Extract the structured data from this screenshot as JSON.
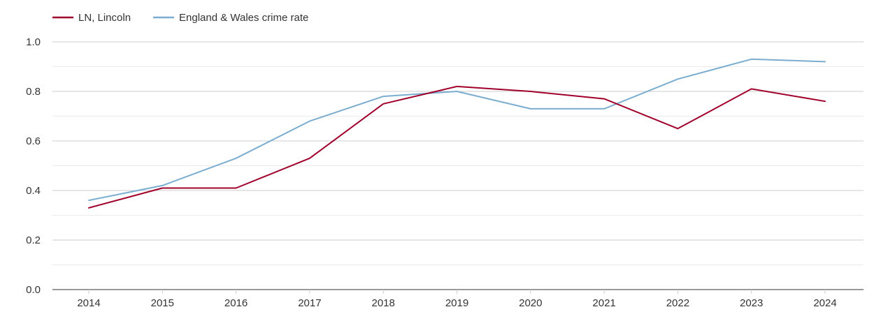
{
  "chart_data": {
    "type": "line",
    "title": "",
    "xlabel": "",
    "ylabel": "",
    "categories": [
      "2014",
      "2015",
      "2016",
      "2017",
      "2018",
      "2019",
      "2020",
      "2021",
      "2022",
      "2023",
      "2024"
    ],
    "ylim": [
      0,
      1.0
    ],
    "y_ticks": [
      "0.0",
      "0.2",
      "0.4",
      "0.6",
      "0.8",
      "1.0"
    ],
    "y_tick_values": [
      0,
      0.2,
      0.4,
      0.6,
      0.8,
      1.0
    ],
    "grid": true,
    "legend_position": "top-left",
    "series": [
      {
        "name": "LN, Lincoln",
        "color": "#a0002a",
        "values": [
          0.33,
          0.41,
          0.41,
          0.53,
          0.75,
          0.82,
          0.8,
          0.77,
          0.65,
          0.81,
          0.76
        ]
      },
      {
        "name": "England & Wales crime rate",
        "color": "#7aadd0",
        "values": [
          0.36,
          0.42,
          0.53,
          0.68,
          0.78,
          0.8,
          0.73,
          0.73,
          0.85,
          0.93,
          0.92
        ]
      }
    ]
  }
}
